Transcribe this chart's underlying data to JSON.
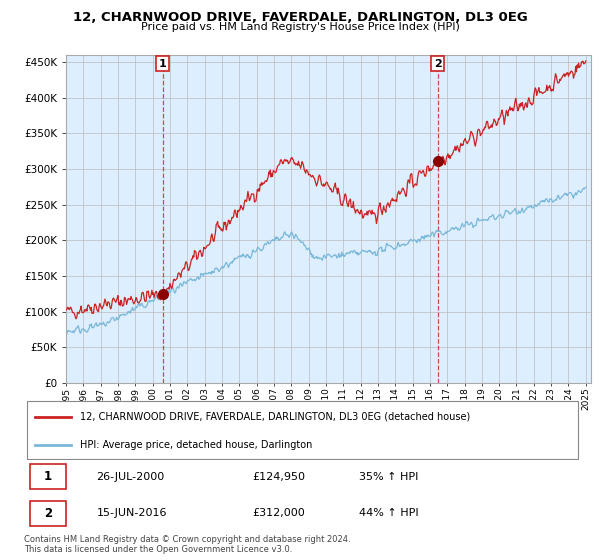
{
  "title": "12, CHARNWOOD DRIVE, FAVERDALE, DARLINGTON, DL3 0EG",
  "subtitle": "Price paid vs. HM Land Registry's House Price Index (HPI)",
  "legend_line1": "12, CHARNWOOD DRIVE, FAVERDALE, DARLINGTON, DL3 0EG (detached house)",
  "legend_line2": "HPI: Average price, detached house, Darlington",
  "sale1_date": "26-JUL-2000",
  "sale1_price": 124950,
  "sale1_year": 2000.583,
  "sale2_date": "15-JUN-2016",
  "sale2_price": 312000,
  "sale2_year": 2016.458,
  "sale1_hpi": "35% ↑ HPI",
  "sale2_hpi": "44% ↑ HPI",
  "footer": "Contains HM Land Registry data © Crown copyright and database right 2024.\nThis data is licensed under the Open Government Licence v3.0.",
  "hpi_color": "#7ab8d9",
  "price_color": "#cc2222",
  "vline_color": "#cc2222",
  "marker_color": "#8b0000",
  "chart_bg": "#ddeeff",
  "ylim": [
    0,
    460000
  ],
  "yticks": [
    0,
    50000,
    100000,
    150000,
    200000,
    250000,
    300000,
    350000,
    400000,
    450000
  ],
  "xstart": 1995,
  "xend": 2025
}
